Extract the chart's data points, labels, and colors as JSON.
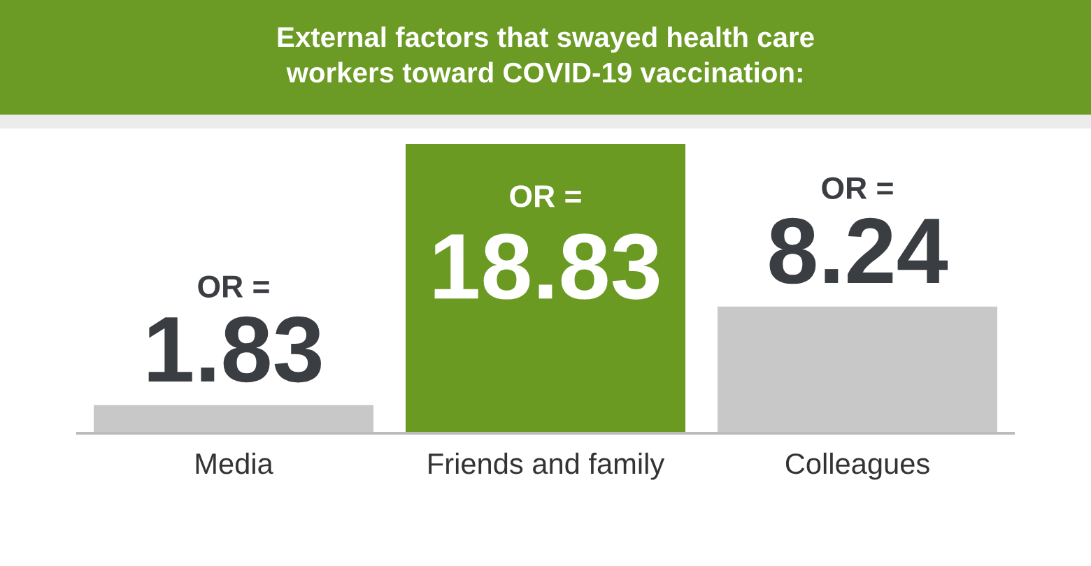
{
  "chart_data": {
    "type": "bar",
    "title": "External factors that swayed health care\nworkers toward COVID-19 vaccination:",
    "categories": [
      "Media",
      "Friends and family",
      "Colleagues"
    ],
    "values": [
      1.83,
      18.83,
      8.24
    ],
    "colors": [
      "#c8c8c8",
      "#6a9a22",
      "#c8c8c8"
    ],
    "value_labels": [
      "OR =\n1.83",
      "OR =\n18.83",
      "OR =\n8.24"
    ],
    "grid": false,
    "legend": false
  }
}
